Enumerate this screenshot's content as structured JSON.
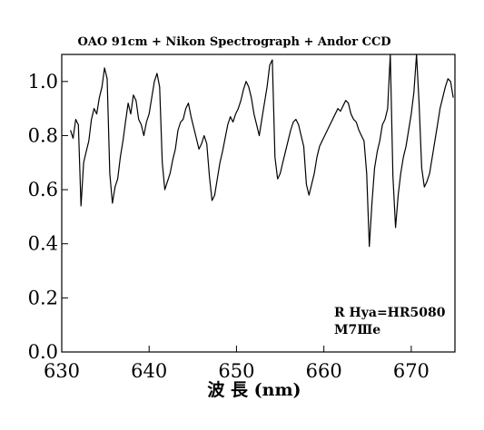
{
  "chart_data": {
    "type": "line",
    "title": "OAO 91cm + Nikon Spectrograph + Andor CCD",
    "xlabel": "波 長 (nm)",
    "ylabel": "",
    "xlim": [
      630,
      675
    ],
    "ylim": [
      0.0,
      1.1
    ],
    "xticks": [
      "630",
      "640",
      "650",
      "660",
      "670"
    ],
    "yticks": [
      "0.0",
      "0.2",
      "0.4",
      "0.6",
      "0.8",
      "1.0"
    ],
    "grid": false,
    "legend": "none",
    "annotations": [
      "R Hya=HR5080",
      "M7Ⅲe"
    ],
    "series": [
      {
        "color": "#000000",
        "x": [
          631.0,
          631.3,
          631.6,
          631.9,
          632.2,
          632.5,
          632.8,
          633.1,
          633.4,
          633.7,
          634.0,
          634.3,
          634.6,
          634.9,
          635.2,
          635.5,
          635.8,
          636.1,
          636.4,
          636.7,
          637.0,
          637.3,
          637.6,
          637.9,
          638.2,
          638.5,
          638.8,
          639.1,
          639.4,
          639.7,
          640.0,
          640.3,
          640.6,
          640.9,
          641.2,
          641.5,
          641.8,
          642.1,
          642.4,
          642.7,
          643.0,
          643.3,
          643.6,
          643.9,
          644.2,
          644.5,
          644.8,
          645.1,
          645.4,
          645.7,
          646.0,
          646.3,
          646.6,
          646.9,
          647.2,
          647.5,
          647.8,
          648.1,
          648.4,
          648.7,
          649.0,
          649.3,
          649.6,
          649.9,
          650.2,
          650.5,
          650.8,
          651.1,
          651.4,
          651.7,
          652.0,
          652.3,
          652.6,
          652.9,
          653.2,
          653.5,
          653.8,
          654.1,
          654.4,
          654.7,
          655.0,
          655.3,
          655.6,
          655.9,
          656.2,
          656.5,
          656.8,
          657.1,
          657.4,
          657.7,
          658.0,
          658.3,
          658.6,
          658.9,
          659.2,
          659.5,
          659.8,
          660.1,
          660.4,
          660.7,
          661.0,
          661.3,
          661.6,
          661.9,
          662.2,
          662.5,
          662.8,
          663.1,
          663.4,
          663.7,
          664.0,
          664.3,
          664.6,
          664.9,
          665.2,
          665.5,
          665.8,
          666.1,
          666.4,
          666.7,
          667.0,
          667.3,
          667.6,
          667.9,
          668.2,
          668.5,
          668.8,
          669.1,
          669.4,
          669.7,
          670.0,
          670.3,
          670.6,
          670.9,
          671.2,
          671.5,
          671.8,
          672.1,
          672.4,
          672.7,
          673.0,
          673.3,
          673.6,
          673.9,
          674.2,
          674.5,
          674.8
        ],
        "y": [
          0.82,
          0.79,
          0.86,
          0.84,
          0.54,
          0.7,
          0.74,
          0.78,
          0.86,
          0.9,
          0.88,
          0.94,
          0.98,
          1.05,
          1.01,
          0.66,
          0.55,
          0.61,
          0.64,
          0.72,
          0.78,
          0.85,
          0.92,
          0.88,
          0.95,
          0.93,
          0.86,
          0.84,
          0.8,
          0.85,
          0.88,
          0.94,
          1.0,
          1.03,
          0.98,
          0.7,
          0.6,
          0.63,
          0.66,
          0.71,
          0.75,
          0.82,
          0.85,
          0.86,
          0.9,
          0.92,
          0.87,
          0.83,
          0.79,
          0.75,
          0.77,
          0.8,
          0.77,
          0.65,
          0.56,
          0.58,
          0.64,
          0.7,
          0.74,
          0.79,
          0.84,
          0.87,
          0.85,
          0.88,
          0.9,
          0.93,
          0.97,
          1.0,
          0.98,
          0.94,
          0.88,
          0.84,
          0.8,
          0.86,
          0.92,
          0.98,
          1.06,
          1.08,
          0.72,
          0.64,
          0.66,
          0.7,
          0.74,
          0.78,
          0.82,
          0.85,
          0.86,
          0.84,
          0.8,
          0.76,
          0.62,
          0.58,
          0.62,
          0.66,
          0.72,
          0.76,
          0.78,
          0.8,
          0.82,
          0.84,
          0.86,
          0.88,
          0.9,
          0.89,
          0.91,
          0.93,
          0.92,
          0.88,
          0.86,
          0.85,
          0.82,
          0.8,
          0.78,
          0.66,
          0.39,
          0.55,
          0.68,
          0.74,
          0.78,
          0.84,
          0.86,
          0.9,
          1.1,
          0.65,
          0.46,
          0.58,
          0.66,
          0.72,
          0.76,
          0.82,
          0.88,
          0.96,
          1.1,
          0.92,
          0.68,
          0.61,
          0.63,
          0.66,
          0.72,
          0.78,
          0.84,
          0.9,
          0.94,
          0.98,
          1.01,
          1.0,
          0.94
        ]
      }
    ]
  }
}
